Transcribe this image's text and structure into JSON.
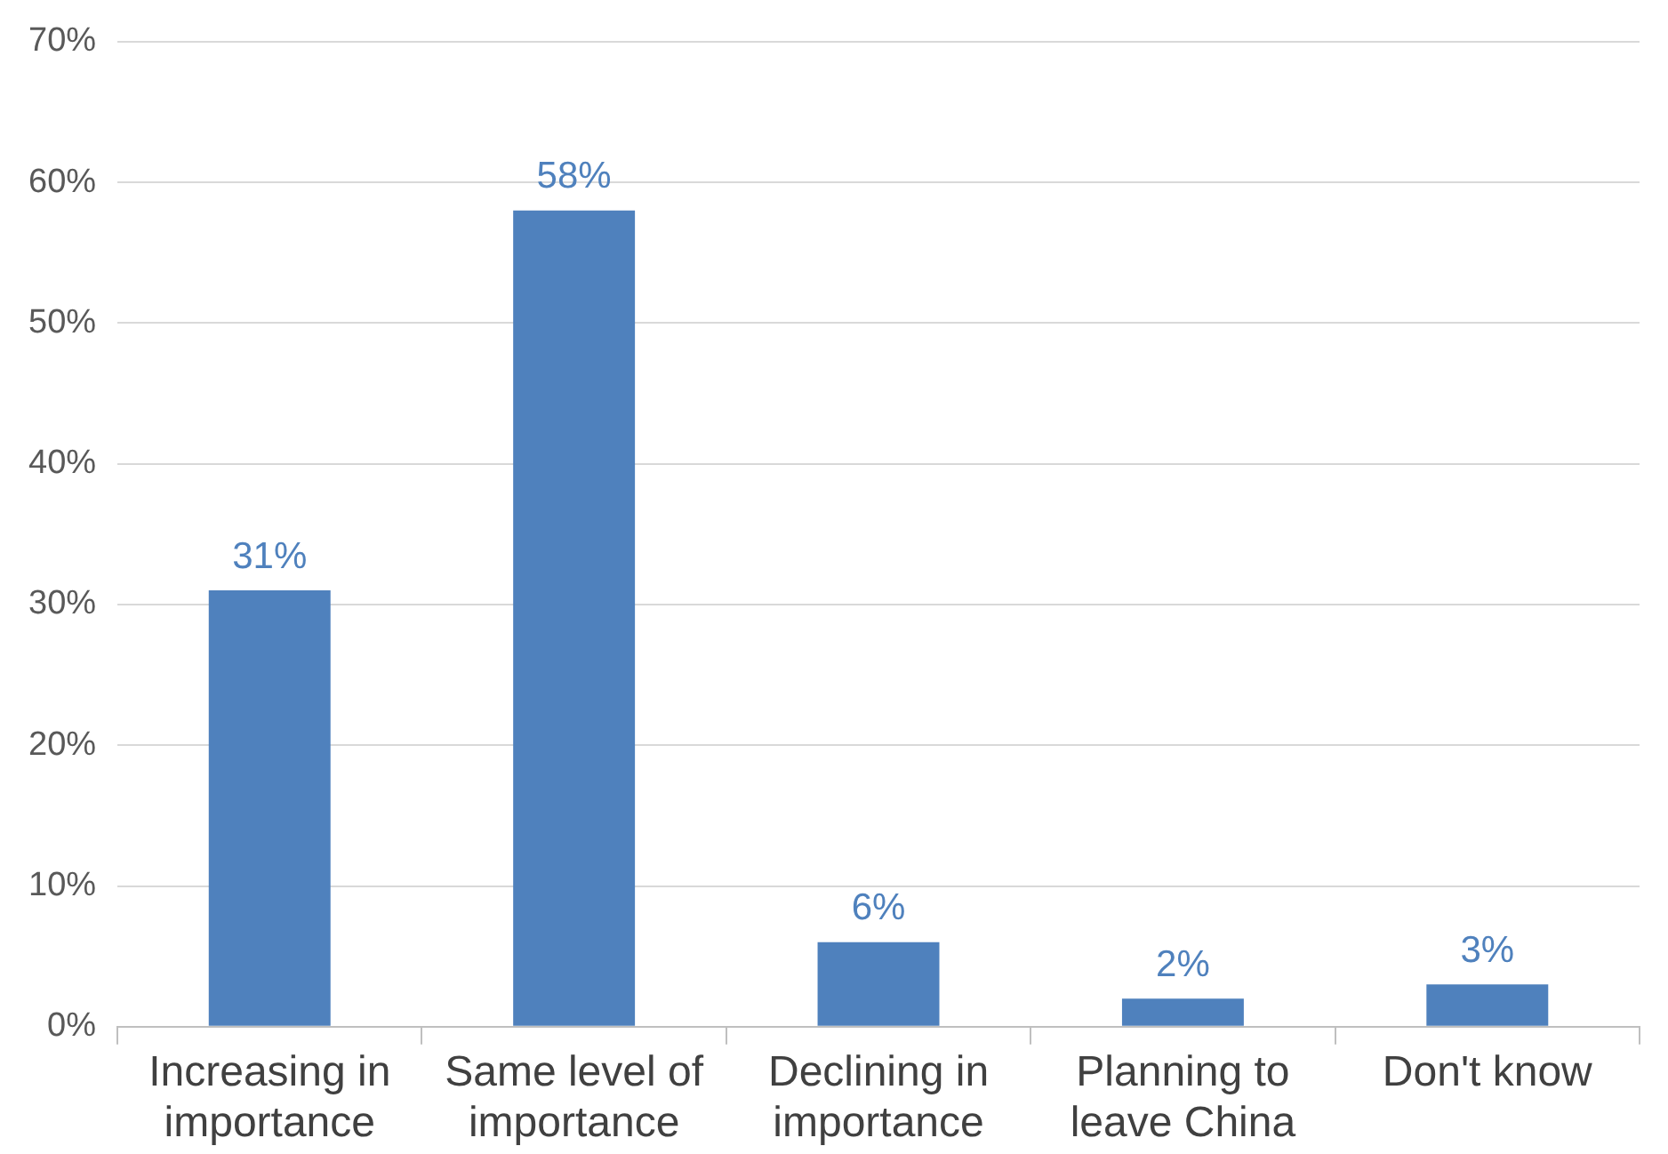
{
  "chart_data": {
    "type": "bar",
    "categories": [
      "Increasing in importance",
      "Same level of importance",
      "Declining in importance",
      "Planning to leave China",
      "Don't know"
    ],
    "values": [
      31,
      58,
      6,
      2,
      3
    ],
    "color": "#4f81bd",
    "value_labels": [
      "31%",
      "58%",
      "6%",
      "2%",
      "3%"
    ],
    "ylim": [
      0,
      70
    ],
    "yticks": [
      {
        "value": 0,
        "label": "0%"
      },
      {
        "value": 10,
        "label": "10%"
      },
      {
        "value": 20,
        "label": "20%"
      },
      {
        "value": 30,
        "label": "30%"
      },
      {
        "value": 40,
        "label": "40%"
      },
      {
        "value": 50,
        "label": "50%"
      },
      {
        "value": 60,
        "label": "60%"
      },
      {
        "value": 70,
        "label": "70%"
      }
    ],
    "grid": "y",
    "legend": false
  }
}
